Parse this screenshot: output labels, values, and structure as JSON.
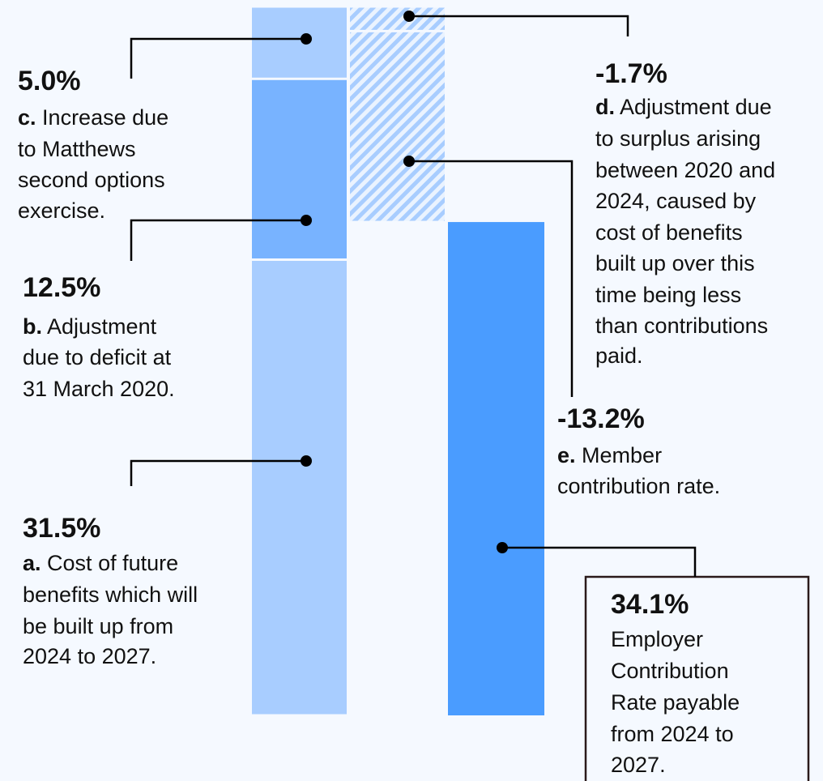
{
  "chart_data": {
    "type": "waterfall",
    "segments": [
      {
        "letter": "a.",
        "value": 31.5,
        "value_label": "31.5%",
        "color": "#a8cdff",
        "style": "solid",
        "lines": [
          "Cost of future",
          "benefits which will",
          "be built up from",
          "2024 to 2027."
        ]
      },
      {
        "letter": "b.",
        "value": 12.5,
        "value_label": "12.5%",
        "color": "#78b3ff",
        "style": "solid",
        "lines": [
          "Adjustment",
          "due to deficit at",
          "31 March 2020."
        ]
      },
      {
        "letter": "c.",
        "value": 5.0,
        "value_label": "5.0%",
        "color": "#a8cdff",
        "style": "solid",
        "lines": [
          "Increase due",
          "to Matthews",
          "second options",
          "exercise."
        ]
      },
      {
        "letter": "d.",
        "value": -1.7,
        "value_label": "-1.7%",
        "color": "#a8cdff",
        "style": "hatched",
        "lines": [
          "Adjustment due",
          "to surplus arising",
          "between 2020 and",
          "2024, caused by",
          "cost of benefits",
          "built up over this",
          "time being less",
          "than contributions",
          "paid."
        ]
      },
      {
        "letter": "e.",
        "value": -13.2,
        "value_label": "-13.2%",
        "color": "#a8cdff",
        "style": "hatched",
        "lines": [
          "Member",
          "contribution rate."
        ]
      }
    ],
    "total": {
      "value": 34.1,
      "value_label": "34.1%",
      "color": "#4a9cff",
      "lines": [
        "Employer",
        "Contribution",
        "Rate payable",
        "from 2024 to",
        "2027."
      ]
    }
  }
}
